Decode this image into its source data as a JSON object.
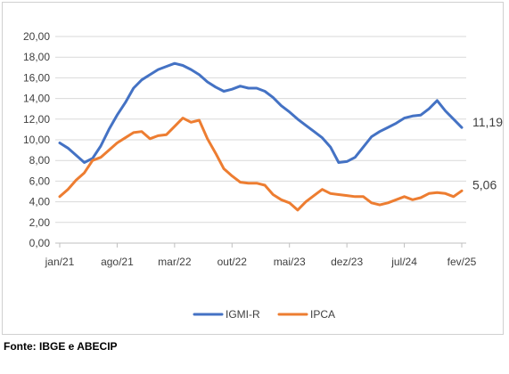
{
  "chart_data": {
    "type": "line",
    "title": "",
    "xlabel": "",
    "ylabel": "",
    "ylim": [
      0,
      20
    ],
    "yticks": [
      "0,00",
      "2,00",
      "4,00",
      "6,00",
      "8,00",
      "10,00",
      "12,00",
      "14,00",
      "16,00",
      "18,00",
      "20,00"
    ],
    "x_tick_labels": [
      "jan/21",
      "ago/21",
      "mar/22",
      "out/22",
      "mai/23",
      "dez/23",
      "jul/24",
      "fev/25"
    ],
    "x": [
      "jan/21",
      "fev/21",
      "mar/21",
      "abr/21",
      "mai/21",
      "jun/21",
      "jul/21",
      "ago/21",
      "set/21",
      "out/21",
      "nov/21",
      "dez/21",
      "jan/22",
      "fev/22",
      "mar/22",
      "abr/22",
      "mai/22",
      "jun/22",
      "jul/22",
      "ago/22",
      "set/22",
      "out/22",
      "nov/22",
      "dez/22",
      "jan/23",
      "fev/23",
      "mar/23",
      "abr/23",
      "mai/23",
      "jun/23",
      "jul/23",
      "ago/23",
      "set/23",
      "out/23",
      "nov/23",
      "dez/23",
      "jan/24",
      "fev/24",
      "mar/24",
      "abr/24",
      "mai/24",
      "jun/24",
      "jul/24",
      "ago/24",
      "set/24",
      "out/24",
      "nov/24",
      "dez/24",
      "jan/25",
      "fev/25"
    ],
    "series": [
      {
        "name": "IGMI-R",
        "color": "#4472C4",
        "values": [
          9.7,
          9.2,
          8.5,
          7.8,
          8.2,
          9.4,
          11.0,
          12.4,
          13.6,
          15.0,
          15.8,
          16.3,
          16.8,
          17.1,
          17.4,
          17.2,
          16.8,
          16.3,
          15.6,
          15.1,
          14.7,
          14.9,
          15.2,
          15.0,
          15.0,
          14.7,
          14.1,
          13.3,
          12.7,
          12.0,
          11.4,
          10.8,
          10.2,
          9.3,
          7.8,
          7.9,
          8.3,
          9.3,
          10.3,
          10.8,
          11.2,
          11.6,
          12.1,
          12.3,
          12.4,
          13.0,
          13.8,
          12.8,
          12.0,
          11.19
        ]
      },
      {
        "name": "IPCA",
        "color": "#ED7D31",
        "values": [
          4.5,
          5.2,
          6.1,
          6.8,
          8.0,
          8.3,
          9.0,
          9.7,
          10.2,
          10.7,
          10.8,
          10.1,
          10.4,
          10.5,
          11.3,
          12.1,
          11.7,
          11.9,
          10.1,
          8.7,
          7.2,
          6.5,
          5.9,
          5.8,
          5.8,
          5.6,
          4.7,
          4.2,
          3.9,
          3.2,
          4.0,
          4.6,
          5.2,
          4.8,
          4.7,
          4.6,
          4.5,
          4.5,
          3.9,
          3.7,
          3.9,
          4.2,
          4.5,
          4.2,
          4.4,
          4.8,
          4.9,
          4.8,
          4.5,
          5.06
        ]
      }
    ],
    "end_labels": [
      "11,19",
      "5,06"
    ],
    "legend_position": "bottom",
    "grid": true
  },
  "source_note": "Fonte: IBGE e ABECIP"
}
